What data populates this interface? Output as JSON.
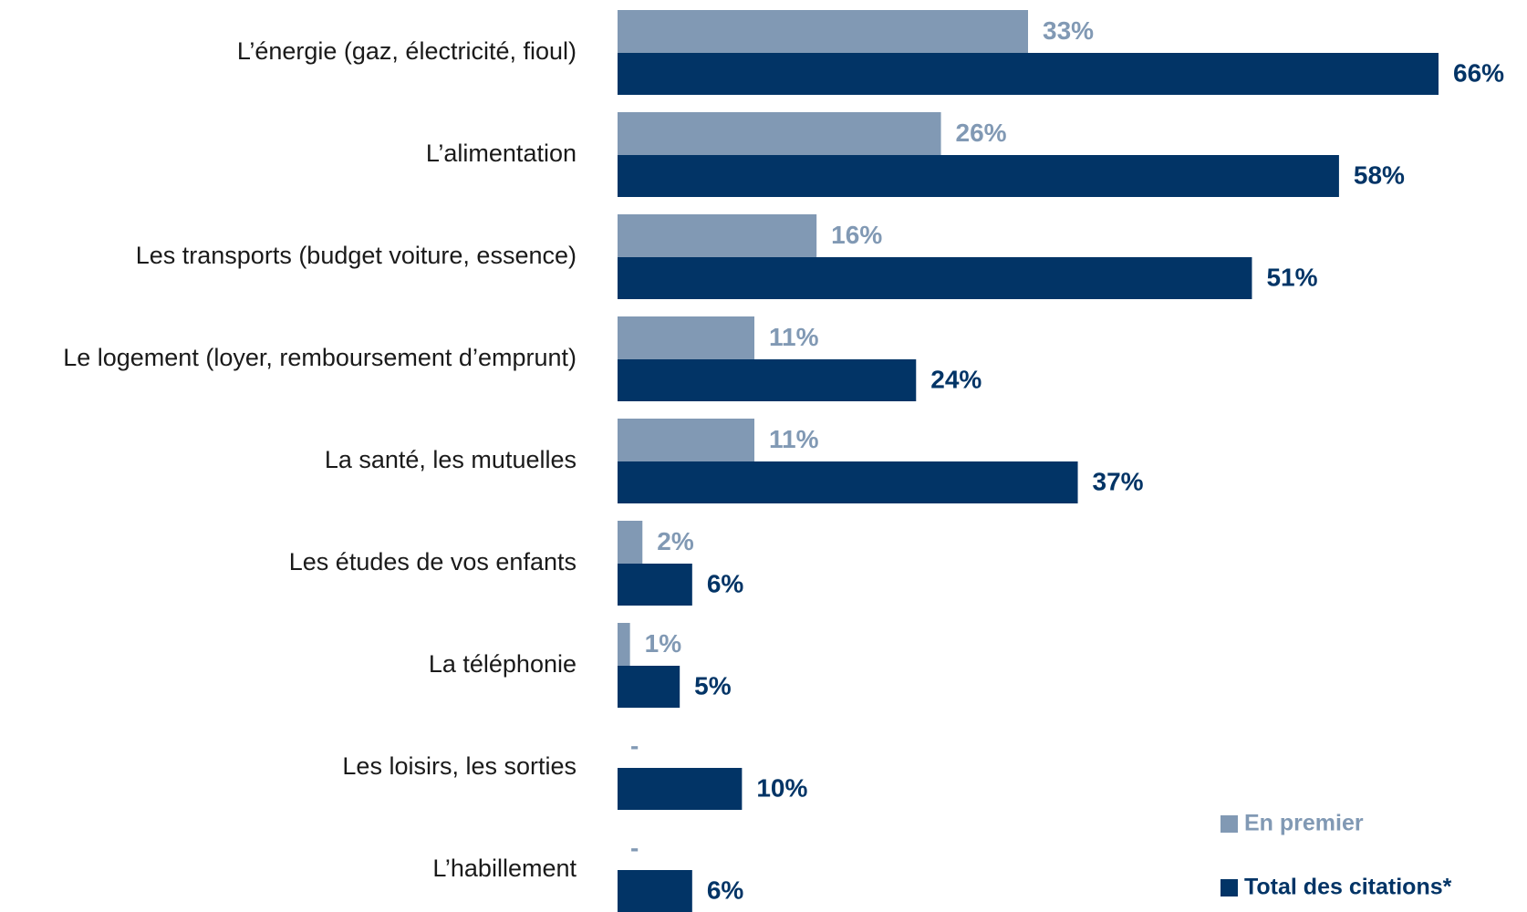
{
  "chart_data": {
    "type": "bar",
    "orientation": "horizontal",
    "categories": [
      "L’énergie (gaz, électricité, fioul)",
      "L’alimentation",
      "Les transports (budget voiture, essence)",
      "Le logement (loyer, remboursement d’emprunt)",
      "La santé, les mutuelles",
      "Les études de vos enfants",
      "La téléphonie",
      "Les loisirs, les sorties",
      "L’habillement"
    ],
    "series": [
      {
        "name": "En premier",
        "color": "#8199b4",
        "values": [
          33,
          26,
          16,
          11,
          11,
          2,
          1,
          null,
          null
        ],
        "value_labels": [
          "33%",
          "26%",
          "16%",
          "11%",
          "11%",
          "2%",
          "1%",
          "-",
          "-"
        ]
      },
      {
        "name": "Total des citations*",
        "color": "#023466",
        "values": [
          66,
          58,
          51,
          24,
          37,
          6,
          5,
          10,
          6
        ],
        "value_labels": [
          "66%",
          "58%",
          "51%",
          "24%",
          "37%",
          "6%",
          "5%",
          "10%",
          "6%"
        ]
      }
    ]
  }
}
